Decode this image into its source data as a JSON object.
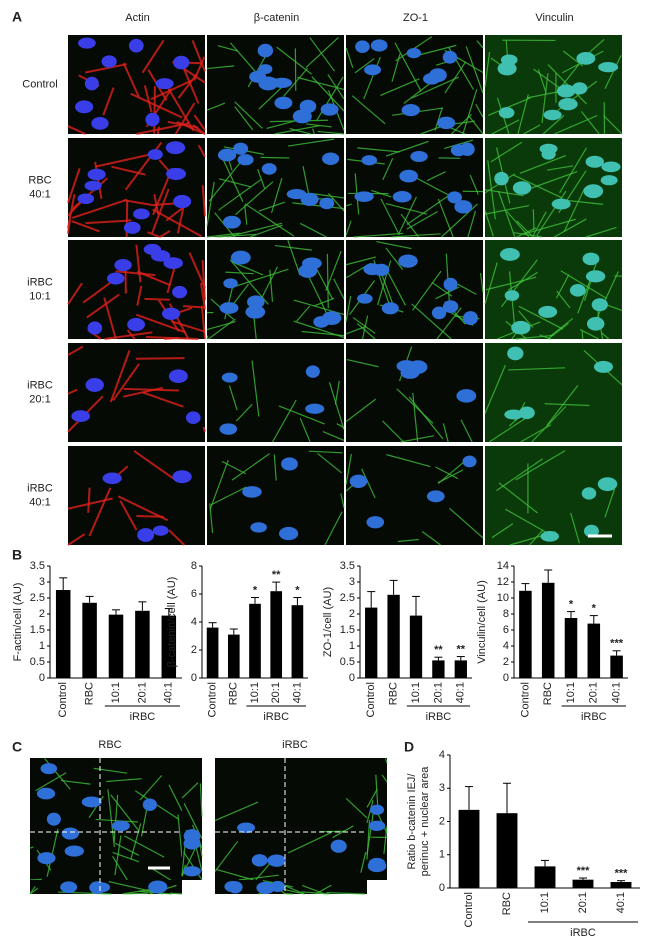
{
  "panel_a": {
    "letter": "A",
    "columns": [
      "Actin",
      "β-catenin",
      "ZO-1",
      "Vinculin"
    ],
    "rows": [
      [
        "Control"
      ],
      [
        "RBC",
        "40:1"
      ],
      [
        "iRBC",
        "10:1"
      ],
      [
        "iRBC",
        "20:1"
      ],
      [
        "iRBC",
        "40:1"
      ]
    ]
  },
  "panel_b": {
    "letter": "B"
  },
  "panel_c": {
    "letter": "C",
    "titles": [
      "RBC",
      "iRBC"
    ]
  },
  "panel_d": {
    "letter": "D"
  },
  "chart_data": [
    {
      "type": "bar",
      "y_label": [
        "F-actin/cell (AU)"
      ],
      "categories": [
        "Control",
        "RBC",
        "10:1",
        "20:1",
        "40:1"
      ],
      "group_label": "iRBC",
      "values": [
        2.75,
        2.35,
        1.98,
        2.1,
        1.95
      ],
      "errors": [
        0.38,
        0.2,
        0.15,
        0.28,
        0.22
      ],
      "significance": [
        null,
        null,
        null,
        null,
        null
      ],
      "color": "#000000",
      "ylim": [
        0,
        3.5
      ],
      "yticks": [
        0,
        0.5,
        1,
        1.5,
        2,
        2.5,
        3,
        3.5
      ]
    },
    {
      "type": "bar",
      "y_label": [
        "β-catenin/cell (AU)"
      ],
      "categories": [
        "Control",
        "RBC",
        "10:1",
        "20:1",
        "40:1"
      ],
      "group_label": "iRBC",
      "values": [
        3.6,
        3.1,
        5.3,
        6.2,
        5.2
      ],
      "errors": [
        0.35,
        0.4,
        0.45,
        0.65,
        0.55
      ],
      "significance": [
        null,
        null,
        "*",
        "**",
        "*"
      ],
      "color": "#000000",
      "ylim": [
        0,
        8
      ],
      "yticks": [
        0,
        2,
        4,
        6,
        8
      ]
    },
    {
      "type": "bar",
      "y_label": [
        "ZO-1/cell (AU)"
      ],
      "categories": [
        "Control",
        "RBC",
        "10:1",
        "20:1",
        "40:1"
      ],
      "group_label": "iRBC",
      "values": [
        2.2,
        2.6,
        1.95,
        0.55,
        0.55
      ],
      "errors": [
        0.5,
        0.45,
        0.6,
        0.1,
        0.12
      ],
      "significance": [
        null,
        null,
        null,
        "**",
        "**"
      ],
      "color": "#000000",
      "ylim": [
        0,
        3.5
      ],
      "yticks": [
        0,
        0.5,
        1,
        1.5,
        2,
        2.5,
        3,
        3.5
      ]
    },
    {
      "type": "bar",
      "y_label": [
        "Vinculin/cell (AU)"
      ],
      "categories": [
        "Control",
        "RBC",
        "10:1",
        "20:1",
        "40:1"
      ],
      "group_label": "iRBC",
      "values": [
        10.9,
        11.9,
        7.5,
        6.8,
        2.8
      ],
      "errors": [
        0.9,
        1.6,
        0.8,
        1.0,
        0.6
      ],
      "significance": [
        null,
        null,
        "*",
        "*",
        "***"
      ],
      "color": "#000000",
      "ylim": [
        0,
        14
      ],
      "yticks": [
        0,
        2,
        4,
        6,
        8,
        10,
        12,
        14
      ]
    },
    {
      "type": "bar",
      "y_label": [
        "Ratio b-catenin IEJ/",
        "perinuc + nuclear area"
      ],
      "categories": [
        "Control",
        "RBC",
        "10:1",
        "20:1",
        "40:1"
      ],
      "group_label": "iRBC",
      "values": [
        2.35,
        2.25,
        0.65,
        0.25,
        0.18
      ],
      "errors": [
        0.7,
        0.9,
        0.18,
        0.05,
        0.04
      ],
      "significance": [
        null,
        null,
        null,
        "***",
        "***"
      ],
      "color": "#000000",
      "ylim": [
        0,
        4
      ],
      "yticks": [
        0,
        1,
        2,
        3,
        4
      ]
    }
  ]
}
